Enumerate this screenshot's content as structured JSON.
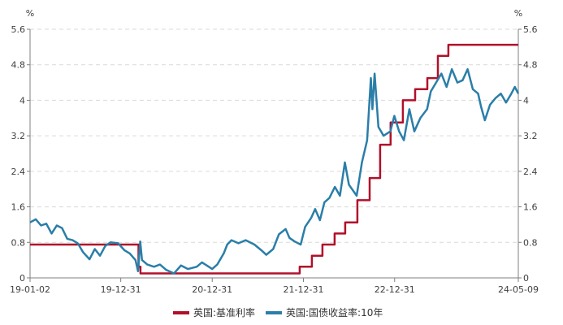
{
  "chart_data": {
    "type": "line",
    "y_unit_left": "%",
    "y_unit_right": "%",
    "ylim": [
      0,
      5.6
    ],
    "yticks": [
      "0",
      "0.8",
      "1.6",
      "2.4",
      "3.2",
      "4",
      "4.8",
      "5.6"
    ],
    "xticks": [
      "19-01-02",
      "19-12-31",
      "20-12-31",
      "21-12-31",
      "22-12-31",
      "24-05-09"
    ],
    "xlim": [
      "2019-01-02",
      "2024-05-09"
    ],
    "grid": "horizontal-dashed",
    "legend_position": "bottom",
    "series": [
      {
        "name": "英国:基准利率",
        "color": "#b0102a",
        "step": true,
        "points": [
          [
            "2019-01-02",
            0.75
          ],
          [
            "2020-03-11",
            0.25
          ],
          [
            "2020-03-19",
            0.1
          ],
          [
            "2021-12-16",
            0.25
          ],
          [
            "2022-02-03",
            0.5
          ],
          [
            "2022-03-17",
            0.75
          ],
          [
            "2022-05-05",
            1.0
          ],
          [
            "2022-06-16",
            1.25
          ],
          [
            "2022-08-04",
            1.75
          ],
          [
            "2022-09-22",
            2.25
          ],
          [
            "2022-11-03",
            3.0
          ],
          [
            "2022-12-15",
            3.5
          ],
          [
            "2023-02-02",
            4.0
          ],
          [
            "2023-03-23",
            4.25
          ],
          [
            "2023-05-11",
            4.5
          ],
          [
            "2023-06-22",
            5.0
          ],
          [
            "2023-08-03",
            5.25
          ],
          [
            "2024-05-09",
            5.25
          ]
        ]
      },
      {
        "name": "英国:国债收益率:10年",
        "color": "#2a7ea8",
        "step": false,
        "points": [
          [
            "2019-01-02",
            1.25
          ],
          [
            "2019-01-25",
            1.32
          ],
          [
            "2019-02-15",
            1.18
          ],
          [
            "2019-03-08",
            1.22
          ],
          [
            "2019-03-29",
            1.0
          ],
          [
            "2019-04-19",
            1.18
          ],
          [
            "2019-05-10",
            1.12
          ],
          [
            "2019-05-31",
            0.88
          ],
          [
            "2019-06-21",
            0.85
          ],
          [
            "2019-07-12",
            0.78
          ],
          [
            "2019-08-02",
            0.58
          ],
          [
            "2019-08-28",
            0.42
          ],
          [
            "2019-09-18",
            0.65
          ],
          [
            "2019-10-09",
            0.5
          ],
          [
            "2019-10-30",
            0.72
          ],
          [
            "2019-11-20",
            0.8
          ],
          [
            "2019-12-20",
            0.78
          ],
          [
            "2020-01-15",
            0.62
          ],
          [
            "2020-02-05",
            0.55
          ],
          [
            "2020-02-28",
            0.4
          ],
          [
            "2020-03-09",
            0.15
          ],
          [
            "2020-03-18",
            0.82
          ],
          [
            "2020-03-25",
            0.4
          ],
          [
            "2020-04-15",
            0.3
          ],
          [
            "2020-05-12",
            0.25
          ],
          [
            "2020-06-05",
            0.3
          ],
          [
            "2020-06-30",
            0.18
          ],
          [
            "2020-07-31",
            0.1
          ],
          [
            "2020-08-28",
            0.28
          ],
          [
            "2020-09-25",
            0.2
          ],
          [
            "2020-10-30",
            0.25
          ],
          [
            "2020-11-20",
            0.35
          ],
          [
            "2020-12-31",
            0.2
          ],
          [
            "2021-01-20",
            0.3
          ],
          [
            "2021-02-15",
            0.55
          ],
          [
            "2021-03-01",
            0.75
          ],
          [
            "2021-03-18",
            0.85
          ],
          [
            "2021-04-15",
            0.78
          ],
          [
            "2021-05-14",
            0.85
          ],
          [
            "2021-06-18",
            0.75
          ],
          [
            "2021-07-16",
            0.62
          ],
          [
            "2021-08-04",
            0.52
          ],
          [
            "2021-09-01",
            0.65
          ],
          [
            "2021-09-24",
            0.98
          ],
          [
            "2021-10-21",
            1.1
          ],
          [
            "2021-11-05",
            0.9
          ],
          [
            "2021-11-26",
            0.82
          ],
          [
            "2021-12-20",
            0.75
          ],
          [
            "2022-01-07",
            1.15
          ],
          [
            "2022-01-31",
            1.35
          ],
          [
            "2022-02-16",
            1.55
          ],
          [
            "2022-03-07",
            1.3
          ],
          [
            "2022-03-25",
            1.7
          ],
          [
            "2022-04-14",
            1.8
          ],
          [
            "2022-05-06",
            2.05
          ],
          [
            "2022-05-26",
            1.85
          ],
          [
            "2022-06-15",
            2.6
          ],
          [
            "2022-07-01",
            2.1
          ],
          [
            "2022-08-01",
            1.85
          ],
          [
            "2022-08-22",
            2.6
          ],
          [
            "2022-09-12",
            3.1
          ],
          [
            "2022-09-27",
            4.5
          ],
          [
            "2022-10-03",
            3.8
          ],
          [
            "2022-10-12",
            4.6
          ],
          [
            "2022-10-27",
            3.4
          ],
          [
            "2022-11-17",
            3.2
          ],
          [
            "2022-12-14",
            3.3
          ],
          [
            "2022-12-30",
            3.65
          ],
          [
            "2023-01-18",
            3.3
          ],
          [
            "2023-02-06",
            3.1
          ],
          [
            "2023-02-28",
            3.8
          ],
          [
            "2023-03-20",
            3.3
          ],
          [
            "2023-04-13",
            3.6
          ],
          [
            "2023-05-10",
            3.8
          ],
          [
            "2023-05-25",
            4.2
          ],
          [
            "2023-06-15",
            4.4
          ],
          [
            "2023-07-06",
            4.6
          ],
          [
            "2023-07-27",
            4.3
          ],
          [
            "2023-08-17",
            4.7
          ],
          [
            "2023-09-08",
            4.4
          ],
          [
            "2023-09-29",
            4.45
          ],
          [
            "2023-10-19",
            4.7
          ],
          [
            "2023-11-09",
            4.25
          ],
          [
            "2023-11-30",
            4.15
          ],
          [
            "2023-12-12",
            3.85
          ],
          [
            "2023-12-27",
            3.55
          ],
          [
            "2024-01-17",
            3.9
          ],
          [
            "2024-02-08",
            4.05
          ],
          [
            "2024-02-29",
            4.15
          ],
          [
            "2024-03-21",
            3.95
          ],
          [
            "2024-04-11",
            4.15
          ],
          [
            "2024-04-25",
            4.3
          ],
          [
            "2024-05-09",
            4.15
          ]
        ]
      }
    ]
  }
}
